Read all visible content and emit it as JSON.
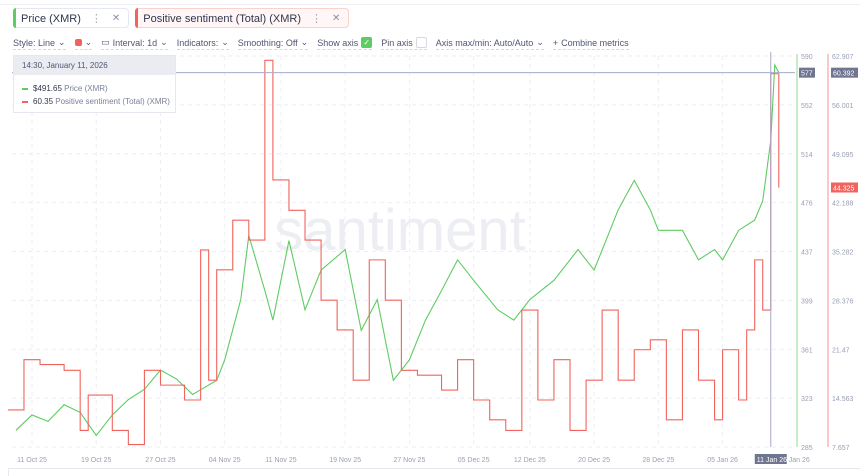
{
  "tabs": [
    {
      "label": "Price (XMR)",
      "color": "#5fcb63"
    },
    {
      "label": "Positive sentiment (Total) (XMR)",
      "color": "#f0645d"
    }
  ],
  "tab_icons": {
    "menu": "more-vertical-icon",
    "close": "close-icon"
  },
  "toolbar": {
    "style": "Style: Line",
    "color_swatch": "#f0645d",
    "interval": "Interval: 1d",
    "indicators": "Indicators:",
    "smoothing": "Smoothing: Off",
    "show_axis": "Show axis",
    "show_axis_checked": true,
    "pin_axis": "Pin axis",
    "pin_axis_checked": false,
    "axis_minmax": "Axis max/min: Auto/Auto",
    "combine": "Combine metrics",
    "combine_icon": "+"
  },
  "tooltip": {
    "time": "14:30, January 11, 2026",
    "rows": [
      {
        "value": "$491.65",
        "label": "Price (XMR)",
        "color": "#5fcb63"
      },
      {
        "value": "60.35",
        "label": "Positive sentiment (Total) (XMR)",
        "color": "#f0645d"
      }
    ]
  },
  "watermark": "santiment",
  "chart_data": {
    "type": "line",
    "x_ticks": [
      "11 Oct 25",
      "19 Oct 25",
      "27 Oct 25",
      "04 Nov 25",
      "11 Nov 25",
      "19 Nov 25",
      "27 Nov 25",
      "05 Dec 25",
      "12 Dec 25",
      "20 Dec 25",
      "28 Dec 25",
      "05 Jan 26",
      "Jan 26"
    ],
    "x_tick_dates": [
      "2025-10-11",
      "2025-10-19",
      "2025-10-27",
      "2025-11-04",
      "2025-11-11",
      "2025-11-19",
      "2025-11-27",
      "2025-12-05",
      "2025-12-12",
      "2025-12-20",
      "2025-12-28",
      "2026-01-05",
      "2026-01-12"
    ],
    "crosshair_x_label": "11 Jan 26",
    "grid": true,
    "series": [
      {
        "name": "Price (XMR)",
        "color": "#5fcb63",
        "step": false,
        "axis": "left",
        "y_ticks": [
          "590",
          "552",
          "514",
          "476",
          "437",
          "399",
          "361",
          "323",
          "285"
        ],
        "ylim": [
          285,
          590
        ],
        "crosshair_label": "577",
        "points": [
          [
            "2025-10-09",
            298
          ],
          [
            "2025-10-11",
            310
          ],
          [
            "2025-10-13",
            305
          ],
          [
            "2025-10-15",
            318
          ],
          [
            "2025-10-17",
            312
          ],
          [
            "2025-10-19",
            294
          ],
          [
            "2025-10-21",
            310
          ],
          [
            "2025-10-23",
            322
          ],
          [
            "2025-10-25",
            330
          ],
          [
            "2025-10-27",
            345
          ],
          [
            "2025-10-29",
            338
          ],
          [
            "2025-10-31",
            326
          ],
          [
            "2025-11-03",
            337
          ],
          [
            "2025-11-04",
            353
          ],
          [
            "2025-11-06",
            400
          ],
          [
            "2025-11-07",
            450
          ],
          [
            "2025-11-09",
            407
          ],
          [
            "2025-11-10",
            384
          ],
          [
            "2025-11-12",
            446
          ],
          [
            "2025-11-14",
            392
          ],
          [
            "2025-11-16",
            423
          ],
          [
            "2025-11-19",
            439
          ],
          [
            "2025-11-21",
            376
          ],
          [
            "2025-11-23",
            400
          ],
          [
            "2025-11-25",
            337
          ],
          [
            "2025-11-27",
            353
          ],
          [
            "2025-11-29",
            384
          ],
          [
            "2025-12-01",
            407
          ],
          [
            "2025-12-03",
            431
          ],
          [
            "2025-12-05",
            415
          ],
          [
            "2025-12-08",
            392
          ],
          [
            "2025-12-10",
            384
          ],
          [
            "2025-12-12",
            400
          ],
          [
            "2025-12-15",
            415
          ],
          [
            "2025-12-18",
            439
          ],
          [
            "2025-12-20",
            423
          ],
          [
            "2025-12-23",
            470
          ],
          [
            "2025-12-25",
            493
          ],
          [
            "2025-12-27",
            470
          ],
          [
            "2025-12-28",
            454
          ],
          [
            "2025-12-31",
            454
          ],
          [
            "2026-01-02",
            431
          ],
          [
            "2026-01-04",
            439
          ],
          [
            "2026-01-05",
            431
          ],
          [
            "2026-01-07",
            454
          ],
          [
            "2026-01-09",
            462
          ],
          [
            "2026-01-10",
            477
          ],
          [
            "2026-01-11",
            524
          ],
          [
            "2026-01-11T12:00",
            583
          ],
          [
            "2026-01-12",
            577
          ]
        ]
      },
      {
        "name": "Positive sentiment (Total) (XMR)",
        "color": "#f0645d",
        "step": true,
        "axis": "right",
        "y_ticks": [
          "62.907",
          "56.001",
          "49.095",
          "42.188",
          "35.282",
          "28.376",
          "21.47",
          "14.563",
          "7.657"
        ],
        "ylim": [
          7.657,
          62.907
        ],
        "crosshair_label": "60.392",
        "last_label": "44.325",
        "points": [
          [
            "2025-10-08",
            12.9
          ],
          [
            "2025-10-10",
            20
          ],
          [
            "2025-10-12",
            19.3
          ],
          [
            "2025-10-15",
            18.5
          ],
          [
            "2025-10-17",
            10
          ],
          [
            "2025-10-18",
            15
          ],
          [
            "2025-10-21",
            10
          ],
          [
            "2025-10-23",
            8
          ],
          [
            "2025-10-25",
            18.5
          ],
          [
            "2025-10-27",
            16.4
          ],
          [
            "2025-10-30",
            14.3
          ],
          [
            "2025-11-01",
            35.5
          ],
          [
            "2025-11-02",
            17.1
          ],
          [
            "2025-11-03",
            32.7
          ],
          [
            "2025-11-05",
            39.7
          ],
          [
            "2025-11-07",
            36.9
          ],
          [
            "2025-11-09",
            62.3
          ],
          [
            "2025-11-10",
            45.4
          ],
          [
            "2025-11-12",
            41.1
          ],
          [
            "2025-11-14",
            36.9
          ],
          [
            "2025-11-16",
            28.4
          ],
          [
            "2025-11-18",
            24.2
          ],
          [
            "2025-11-20",
            17.1
          ],
          [
            "2025-11-22",
            34.1
          ],
          [
            "2025-11-24",
            28.4
          ],
          [
            "2025-11-26",
            18.5
          ],
          [
            "2025-11-28",
            17.8
          ],
          [
            "2025-12-01",
            15.7
          ],
          [
            "2025-12-03",
            20
          ],
          [
            "2025-12-05",
            14.3
          ],
          [
            "2025-12-07",
            11.5
          ],
          [
            "2025-12-09",
            10
          ],
          [
            "2025-12-11",
            27
          ],
          [
            "2025-12-13",
            14.3
          ],
          [
            "2025-12-15",
            20
          ],
          [
            "2025-12-17",
            10
          ],
          [
            "2025-12-19",
            17.1
          ],
          [
            "2025-12-21",
            27
          ],
          [
            "2025-12-23",
            17.1
          ],
          [
            "2025-12-25",
            21.4
          ],
          [
            "2025-12-27",
            22.8
          ],
          [
            "2025-12-29",
            11.5
          ],
          [
            "2025-12-31",
            24.2
          ],
          [
            "2026-01-02",
            17.1
          ],
          [
            "2026-01-04",
            11.5
          ],
          [
            "2026-01-05",
            21.4
          ],
          [
            "2026-01-07",
            14.3
          ],
          [
            "2026-01-08",
            24.2
          ],
          [
            "2026-01-09",
            34.1
          ],
          [
            "2026-01-10",
            27
          ],
          [
            "2026-01-11",
            60.4
          ],
          [
            "2026-01-12",
            44.3
          ]
        ]
      }
    ]
  }
}
